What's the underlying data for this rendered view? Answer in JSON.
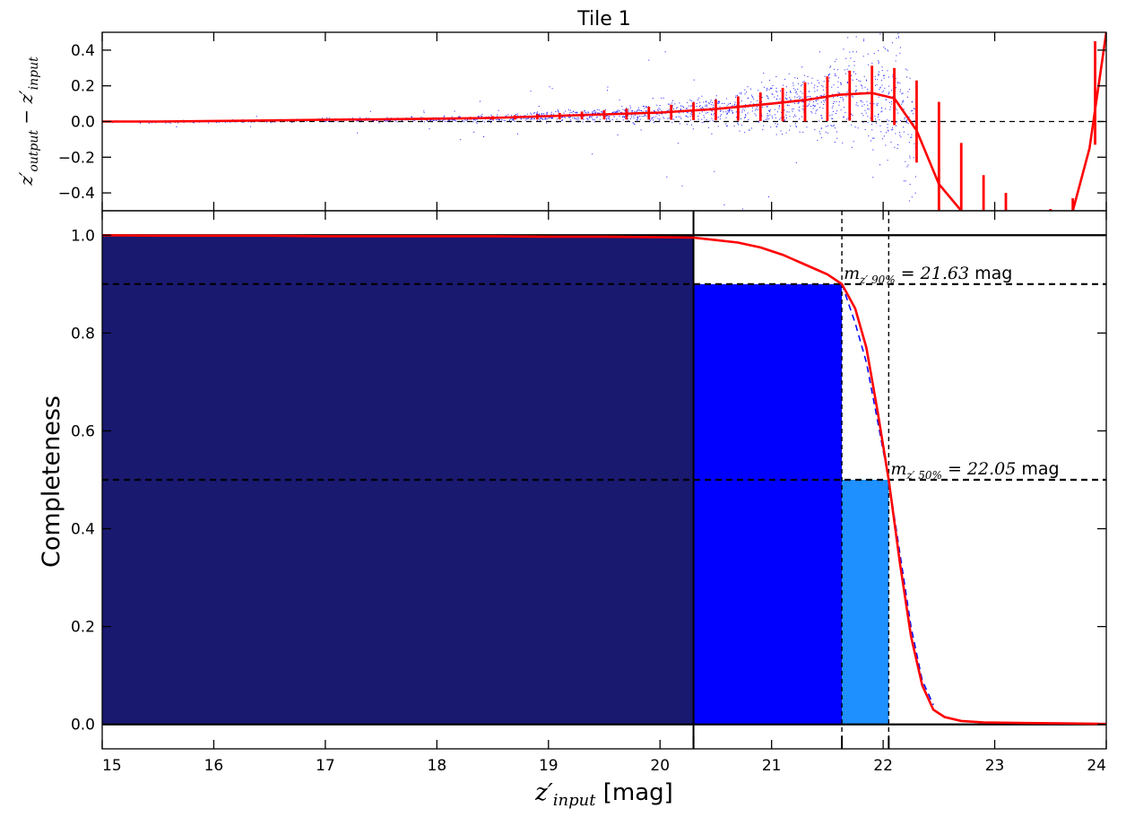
{
  "title": "Tile 1",
  "colors": {
    "scatter": "#0000ff",
    "median_line": "#ff0000",
    "bar_full": "#191970",
    "bar_90": "#0000ff",
    "bar_50": "#1e90ff",
    "fit_dashed": "#0000ff"
  },
  "chart_data": [
    {
      "type": "scatter",
      "name": "residuals-panel",
      "title": "Tile 1",
      "ylabel_main": "z′",
      "ylabel_sub1": "output",
      "ylabel_op": " − z′",
      "ylabel_sub2": "input",
      "xlim": [
        15,
        24
      ],
      "ylim": [
        -0.5,
        0.5
      ],
      "yticks": [
        -0.4,
        -0.2,
        0.0,
        0.2,
        0.4
      ],
      "ytick_labels": [
        "−0.4",
        "−0.2",
        "0.0",
        "0.2",
        "0.4"
      ],
      "reference_line_y": 0.0,
      "median": {
        "x": [
          15.0,
          15.5,
          16.0,
          16.5,
          17.0,
          17.5,
          18.0,
          18.5,
          19.0,
          19.5,
          20.0,
          20.5,
          21.0,
          21.3,
          21.6,
          21.9,
          22.1,
          22.3,
          22.5,
          22.7
        ],
        "y": [
          0.0,
          0.0,
          0.003,
          0.006,
          0.01,
          0.012,
          0.016,
          0.02,
          0.03,
          0.04,
          0.05,
          0.07,
          0.1,
          0.12,
          0.15,
          0.16,
          0.13,
          -0.05,
          -0.35,
          -0.5
        ]
      },
      "median_tail": {
        "x": [
          23.7,
          23.85,
          24.0
        ],
        "y": [
          -0.5,
          -0.15,
          0.5
        ]
      },
      "errorbars": [
        {
          "x": 17.5,
          "y": 0.012,
          "err": 0.004
        },
        {
          "x": 17.7,
          "y": 0.013,
          "err": 0.005
        },
        {
          "x": 17.9,
          "y": 0.014,
          "err": 0.006
        },
        {
          "x": 18.1,
          "y": 0.016,
          "err": 0.007
        },
        {
          "x": 18.3,
          "y": 0.018,
          "err": 0.008
        },
        {
          "x": 18.5,
          "y": 0.02,
          "err": 0.01
        },
        {
          "x": 18.7,
          "y": 0.023,
          "err": 0.012
        },
        {
          "x": 18.9,
          "y": 0.026,
          "err": 0.015
        },
        {
          "x": 19.1,
          "y": 0.03,
          "err": 0.018
        },
        {
          "x": 19.3,
          "y": 0.034,
          "err": 0.022
        },
        {
          "x": 19.5,
          "y": 0.038,
          "err": 0.026
        },
        {
          "x": 19.7,
          "y": 0.042,
          "err": 0.031
        },
        {
          "x": 19.9,
          "y": 0.047,
          "err": 0.036
        },
        {
          "x": 20.1,
          "y": 0.052,
          "err": 0.042
        },
        {
          "x": 20.3,
          "y": 0.058,
          "err": 0.05
        },
        {
          "x": 20.5,
          "y": 0.065,
          "err": 0.058
        },
        {
          "x": 20.7,
          "y": 0.073,
          "err": 0.068
        },
        {
          "x": 20.9,
          "y": 0.083,
          "err": 0.08
        },
        {
          "x": 21.1,
          "y": 0.095,
          "err": 0.094
        },
        {
          "x": 21.3,
          "y": 0.11,
          "err": 0.11
        },
        {
          "x": 21.5,
          "y": 0.128,
          "err": 0.125
        },
        {
          "x": 21.7,
          "y": 0.145,
          "err": 0.14
        },
        {
          "x": 21.9,
          "y": 0.158,
          "err": 0.155
        },
        {
          "x": 22.1,
          "y": 0.14,
          "err": 0.16
        },
        {
          "x": 22.3,
          "y": 0.0,
          "err": 0.23
        },
        {
          "x": 22.5,
          "y": -0.2,
          "err": 0.31
        },
        {
          "x": 22.7,
          "y": -0.52,
          "err": 0.4
        },
        {
          "x": 22.9,
          "y": -0.52,
          "err": 0.22
        },
        {
          "x": 23.1,
          "y": -0.52,
          "err": 0.12
        },
        {
          "x": 23.5,
          "y": -0.52,
          "err": 0.03
        },
        {
          "x": 23.7,
          "y": -0.52,
          "err": 0.09
        },
        {
          "x": 23.9,
          "y": 0.16,
          "err": 0.29
        }
      ]
    },
    {
      "type": "area",
      "name": "completeness-panel",
      "xlabel_main": "z′",
      "xlabel_sub": "input",
      "xlabel_unit": " [mag]",
      "ylabel": "Completeness",
      "xlim": [
        15,
        24
      ],
      "ylim": [
        -0.05,
        1.05
      ],
      "xticks": [
        15,
        16,
        17,
        18,
        19,
        20,
        21,
        22,
        23,
        24
      ],
      "xtick_labels": [
        "15",
        "16",
        "17",
        "18",
        "19",
        "20",
        "21",
        "22",
        "23",
        "24"
      ],
      "yticks": [
        0.0,
        0.2,
        0.4,
        0.6,
        0.8,
        1.0
      ],
      "ytick_labels": [
        "0.0",
        "0.2",
        "0.4",
        "0.6",
        "0.8",
        "1.0"
      ],
      "bars": [
        {
          "x0": 15.0,
          "x1": 20.3,
          "height": 1.0,
          "color_key": "bar_full"
        },
        {
          "x0": 20.3,
          "x1": 21.63,
          "height": 0.9,
          "color_key": "bar_90"
        },
        {
          "x0": 21.63,
          "x1": 22.05,
          "height": 0.5,
          "color_key": "bar_50"
        }
      ],
      "hlines": [
        0.0,
        0.5,
        0.9,
        1.0
      ],
      "vlines": [
        20.3,
        21.63,
        22.05
      ],
      "completeness_curve": {
        "x": [
          15.0,
          15.5,
          16.0,
          16.5,
          17.0,
          17.5,
          18.0,
          18.5,
          19.0,
          19.5,
          20.0,
          20.3,
          20.5,
          20.7,
          20.9,
          21.1,
          21.3,
          21.5,
          21.63,
          21.75,
          21.85,
          21.95,
          22.05,
          22.15,
          22.25,
          22.35,
          22.45,
          22.55,
          22.7,
          22.9,
          23.2,
          23.6,
          24.0
        ],
        "y": [
          1.0,
          0.999,
          0.999,
          0.999,
          0.998,
          0.998,
          0.998,
          0.998,
          0.997,
          0.997,
          0.996,
          0.995,
          0.99,
          0.985,
          0.975,
          0.96,
          0.94,
          0.92,
          0.9,
          0.85,
          0.77,
          0.64,
          0.5,
          0.33,
          0.18,
          0.08,
          0.03,
          0.015,
          0.007,
          0.004,
          0.003,
          0.002,
          0.001
        ]
      },
      "fit_curve": {
        "x": [
          21.63,
          21.75,
          21.85,
          21.95,
          22.05,
          22.15,
          22.25,
          22.35,
          22.45
        ],
        "y": [
          0.9,
          0.82,
          0.74,
          0.62,
          0.5,
          0.35,
          0.2,
          0.09,
          0.04
        ]
      },
      "annotations": [
        {
          "x": 21.63,
          "y": 0.9,
          "sym": "m",
          "sub": "z′ 90%",
          "eq": " = 21.63",
          "unit": " mag"
        },
        {
          "x": 22.05,
          "y": 0.5,
          "sym": "m",
          "sub": "z′ 50%",
          "eq": " = 22.05",
          "unit": " mag"
        }
      ]
    }
  ]
}
